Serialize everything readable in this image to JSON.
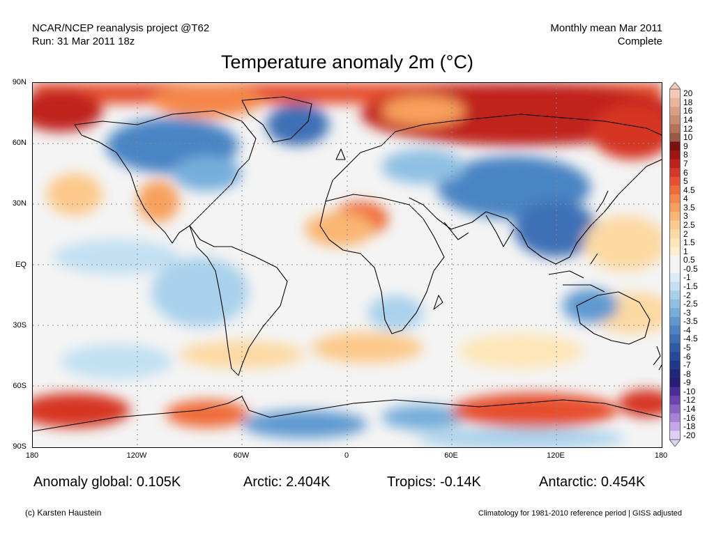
{
  "header": {
    "source_line1": "NCAR/NCEP reanalysis project @T62",
    "source_line2": "Run: 31 Mar 2011 18z",
    "period_line1": "Monthly mean Mar 2011",
    "period_line2": "Complete"
  },
  "title": "Temperature anomaly 2m (°C)",
  "axes": {
    "y_labels": [
      "90N",
      "60N",
      "30N",
      "EQ",
      "30S",
      "60S",
      "90S"
    ],
    "x_labels": [
      "180",
      "120W",
      "60W",
      "0",
      "60E",
      "120E",
      "180"
    ]
  },
  "colorbar": {
    "labels": [
      "20",
      "18",
      "16",
      "14",
      "12",
      "10",
      "9",
      "8",
      "7",
      "6",
      "5",
      "4.5",
      "4",
      "3.5",
      "3",
      "2.5",
      "2",
      "1.5",
      "1",
      "0.5",
      "-0.5",
      "-1",
      "-1.5",
      "-2",
      "-2.5",
      "-3",
      "-3.5",
      "-4",
      "-4.5",
      "-5",
      "-6",
      "-7",
      "-8",
      "-9",
      "-10",
      "-12",
      "-14",
      "-16",
      "-18",
      "-20"
    ],
    "colors": [
      "#f7c8b4",
      "#e9b59b",
      "#d9a084",
      "#c98a6e",
      "#b4735a",
      "#9b5a44",
      "#7a1010",
      "#a01414",
      "#c0201c",
      "#d63624",
      "#e6502e",
      "#ef6c3a",
      "#f5874a",
      "#f8a05c",
      "#fab672",
      "#fcc98a",
      "#fdd9a2",
      "#fee6b8",
      "#fff0cc",
      "#f4f4f4",
      "#f4f4f4",
      "#d9ecf7",
      "#c2e0f2",
      "#a9d1ec",
      "#8fc0e3",
      "#76aedb",
      "#5e9ad0",
      "#4a84c4",
      "#3c6fb6",
      "#2f5ba6",
      "#274a98",
      "#21398a",
      "#1e287c",
      "#2a1d7a",
      "#4a2f96",
      "#6a45b0",
      "#8a62c6",
      "#a683d8",
      "#c2a8e8",
      "#ddd0f4"
    ]
  },
  "stats": {
    "global": "Anomaly global: 0.105K",
    "arctic": "Arctic: 2.404K",
    "tropics": "Tropics: -0.14K",
    "antarctic": "Antarctic: 0.454K"
  },
  "footer": {
    "credit": "(c) Karsten Haustein",
    "note": "Climatology for 1981-2010 reference period | GISS adjusted"
  }
}
